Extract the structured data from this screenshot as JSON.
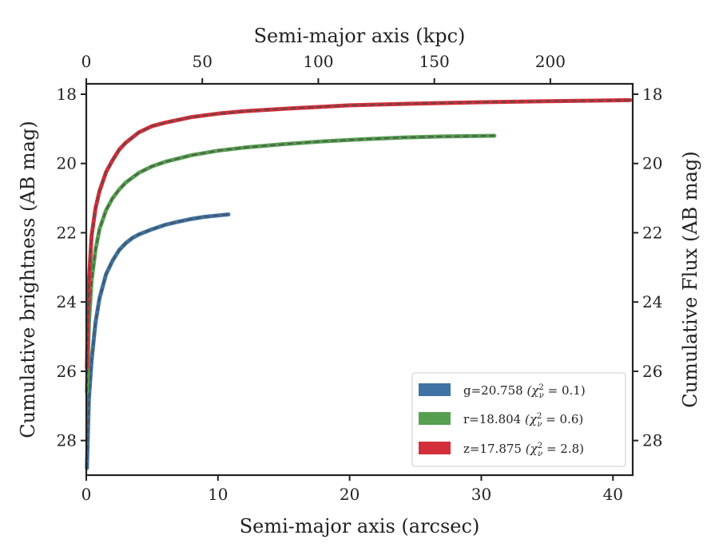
{
  "chart_data": {
    "type": "line",
    "title": "",
    "xlabel": "Semi-major axis (arcsec)",
    "xlabel_top": "Semi-major axis (kpc)",
    "ylabel": "Cumulative brightness (AB mag)",
    "ylabel_right": "Cumulative Flux (AB mag)",
    "xlim": [
      0,
      41.5
    ],
    "xlim_top": [
      0,
      235.5
    ],
    "ylim": [
      29.0,
      17.7
    ],
    "y_inverted": true,
    "x_ticks": [
      "0",
      "10",
      "20",
      "30",
      "40"
    ],
    "x_tick_values": [
      0,
      10,
      20,
      30,
      40
    ],
    "x_top_ticks": [
      "0",
      "50",
      "100",
      "150",
      "200"
    ],
    "x_top_tick_values": [
      0,
      50,
      100,
      150,
      200
    ],
    "y_ticks": [
      "18",
      "20",
      "22",
      "24",
      "26",
      "28"
    ],
    "y_tick_values": [
      18,
      20,
      22,
      24,
      26,
      28
    ],
    "grid": false,
    "legend_position": "lower-right",
    "series": [
      {
        "name": "g=20.758 (χ²ᵥ = 0.1)",
        "legend_main": "g=20.758",
        "legend_chi": "(χ",
        "legend_val": " = 0.1)",
        "color": "#3f73a3",
        "x": [
          0.05,
          0.2,
          0.4,
          0.7,
          1.0,
          1.5,
          2.0,
          2.5,
          3.0,
          3.5,
          4.0,
          5.0,
          6.0,
          7.0,
          8.0,
          9.0,
          10.0,
          10.8
        ],
        "y": [
          28.8,
          26.8,
          25.7,
          24.6,
          23.9,
          23.2,
          22.8,
          22.5,
          22.3,
          22.15,
          22.05,
          21.9,
          21.77,
          21.68,
          21.6,
          21.54,
          21.5,
          21.47
        ]
      },
      {
        "name": "r=18.804 (χ²ᵥ = 0.6)",
        "legend_main": "r=18.804",
        "legend_chi": "(χ",
        "legend_val": " = 0.6)",
        "color": "#56a051",
        "x": [
          0.05,
          0.2,
          0.4,
          0.7,
          1.0,
          1.5,
          2.0,
          2.5,
          3.0,
          4.0,
          5.0,
          6.0,
          8.0,
          10.0,
          12.0,
          15.0,
          18.0,
          21.0,
          24.0,
          27.0,
          31.0
        ],
        "y": [
          26.6,
          24.6,
          23.4,
          22.5,
          21.9,
          21.35,
          21.0,
          20.75,
          20.55,
          20.27,
          20.08,
          19.95,
          19.76,
          19.63,
          19.54,
          19.44,
          19.36,
          19.3,
          19.25,
          19.22,
          19.2
        ]
      },
      {
        "name": "z=17.875 (χ²ᵥ = 2.8)",
        "legend_main": "z=17.875",
        "legend_chi": "(χ",
        "legend_val": " = 2.8)",
        "color": "#d1303a",
        "x": [
          0.05,
          0.2,
          0.4,
          0.7,
          1.0,
          1.5,
          2.0,
          2.5,
          3.0,
          4.0,
          5.0,
          6.0,
          8.0,
          10.0,
          12.0,
          15.0,
          20.0,
          25.0,
          30.0,
          35.0,
          41.3
        ],
        "y": [
          25.9,
          23.4,
          22.1,
          21.3,
          20.8,
          20.25,
          19.9,
          19.6,
          19.4,
          19.1,
          18.92,
          18.82,
          18.66,
          18.56,
          18.49,
          18.42,
          18.32,
          18.27,
          18.23,
          18.2,
          18.17
        ]
      }
    ]
  }
}
